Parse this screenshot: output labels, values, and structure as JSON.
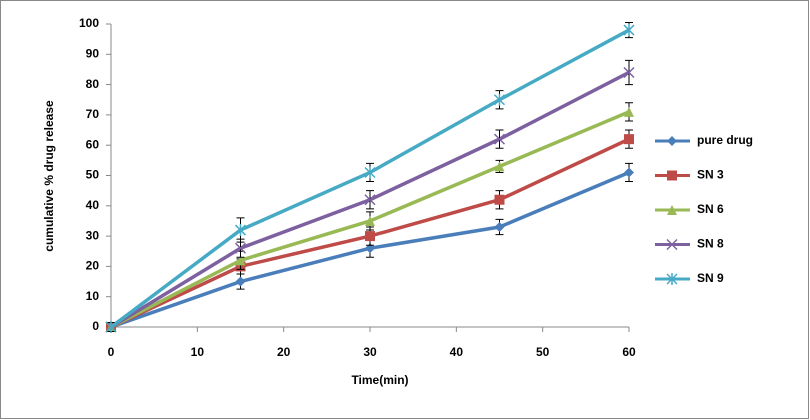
{
  "chart_data": {
    "type": "line",
    "x_label": "Time(min)",
    "y_label": "cumulative % drug release",
    "x": [
      0,
      15,
      30,
      45,
      60
    ],
    "xlim": [
      0,
      60
    ],
    "xticks": [
      0,
      10,
      20,
      30,
      40,
      50,
      60
    ],
    "ylim": [
      0,
      100
    ],
    "yticks": [
      0,
      10,
      20,
      30,
      40,
      50,
      60,
      70,
      80,
      90,
      100
    ],
    "grid": false,
    "legend": "right",
    "series": [
      {
        "name": "pure drug",
        "color": "#4a7ebb",
        "marker": "diamond",
        "values": [
          0,
          15,
          26,
          33,
          51
        ],
        "errors": [
          1.5,
          2.5,
          3,
          2.5,
          3
        ]
      },
      {
        "name": "SN 3",
        "color": "#be4b48",
        "marker": "square",
        "values": [
          0,
          20,
          30,
          42,
          62
        ],
        "errors": [
          1.5,
          2.5,
          3,
          3,
          3
        ]
      },
      {
        "name": "SN 6",
        "color": "#98b954",
        "marker": "triangle",
        "values": [
          0,
          22,
          35,
          53,
          71
        ],
        "errors": [
          1.5,
          3,
          3,
          2,
          3
        ]
      },
      {
        "name": "SN 8",
        "color": "#7d60a0",
        "marker": "x",
        "values": [
          0,
          26,
          42,
          62,
          84
        ],
        "errors": [
          1.5,
          3,
          3,
          3,
          4
        ]
      },
      {
        "name": "SN 9",
        "color": "#46aac5",
        "marker": "star",
        "values": [
          0,
          32,
          51,
          75,
          98
        ],
        "errors": [
          1.5,
          4,
          3,
          3,
          2.5
        ]
      }
    ]
  }
}
